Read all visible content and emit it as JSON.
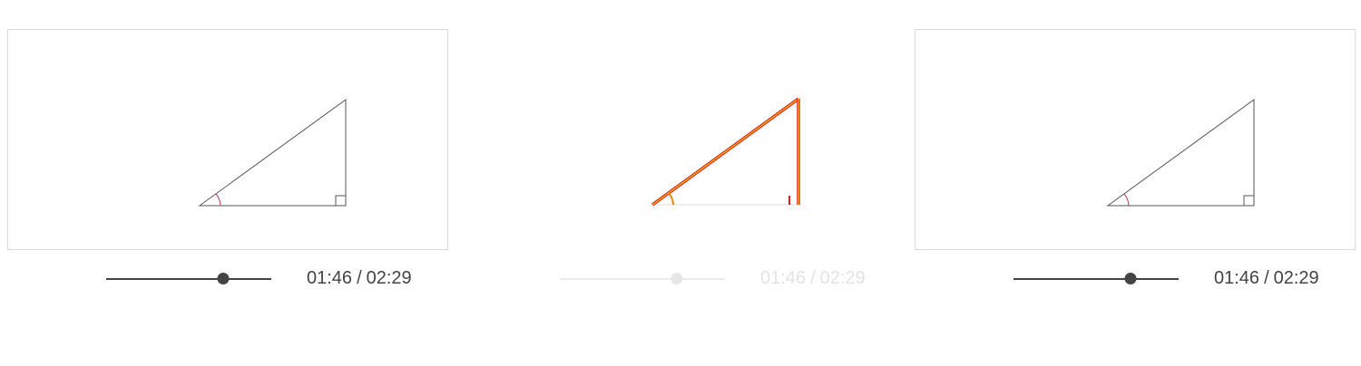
{
  "players": [
    {
      "id": "left",
      "current_time": "01:46",
      "total_time": "02:29",
      "progress": 0.711,
      "style": "normal"
    },
    {
      "id": "middle",
      "current_time": "01:46",
      "total_time": "02:29",
      "progress": 0.711,
      "style": "highlighted-faded"
    },
    {
      "id": "right",
      "current_time": "01:46",
      "total_time": "02:29",
      "progress": 0.711,
      "style": "normal"
    }
  ],
  "colors": {
    "line": "#444444",
    "angle_arc": "#c0395a",
    "highlight_red": "#e02020",
    "highlight_yellow": "#f5c400",
    "faded_text": "#e3e3e3"
  }
}
